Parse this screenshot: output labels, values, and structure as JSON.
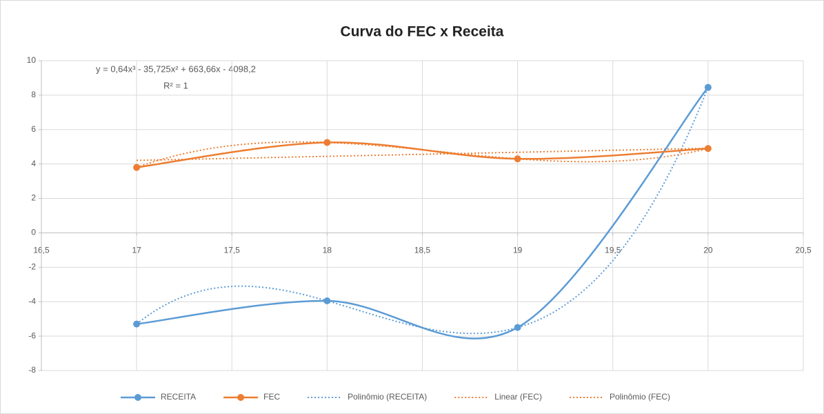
{
  "chart_data": {
    "type": "scatter",
    "title": "Curva do FEC x  Receita",
    "x": [
      17,
      18,
      19,
      20
    ],
    "series": [
      {
        "name": "RECEITA",
        "color": "#5b9bd5",
        "values": [
          -5.3,
          -3.95,
          -5.5,
          8.45
        ]
      },
      {
        "name": "FEC",
        "color": "#ed7d31",
        "values": [
          3.8,
          5.25,
          4.3,
          4.9
        ]
      }
    ],
    "trendlines": [
      {
        "name": "Polinômio (RECEITA)",
        "series": 0,
        "order": 3,
        "color": "#5b9bd5"
      },
      {
        "name": "Linear (FEC)",
        "series": 1,
        "order": 1,
        "color": "#ed7d31"
      },
      {
        "name": "Polinômio (FEC)",
        "series": 1,
        "order": 3,
        "color": "#ed7d31"
      }
    ],
    "annotations": [
      "y = 0,64x³ - 35,725x² + 663,66x - 4098,2",
      "R² = 1"
    ],
    "xlim": [
      16.5,
      20.5
    ],
    "xticks": [
      {
        "value": 16.5,
        "label": "16,5"
      },
      17,
      {
        "value": 17.5,
        "label": "17,5"
      },
      18,
      {
        "value": 18.5,
        "label": "18,5"
      },
      19,
      {
        "value": 19.5,
        "label": "19,5"
      },
      20,
      {
        "value": 20.5,
        "label": "20,5"
      }
    ],
    "ylim": [
      -8,
      10
    ],
    "yticks": [
      -8,
      -6,
      -4,
      -2,
      0,
      2,
      4,
      6,
      8,
      10
    ],
    "grid": true,
    "smooth": true,
    "legend": "bottom"
  }
}
